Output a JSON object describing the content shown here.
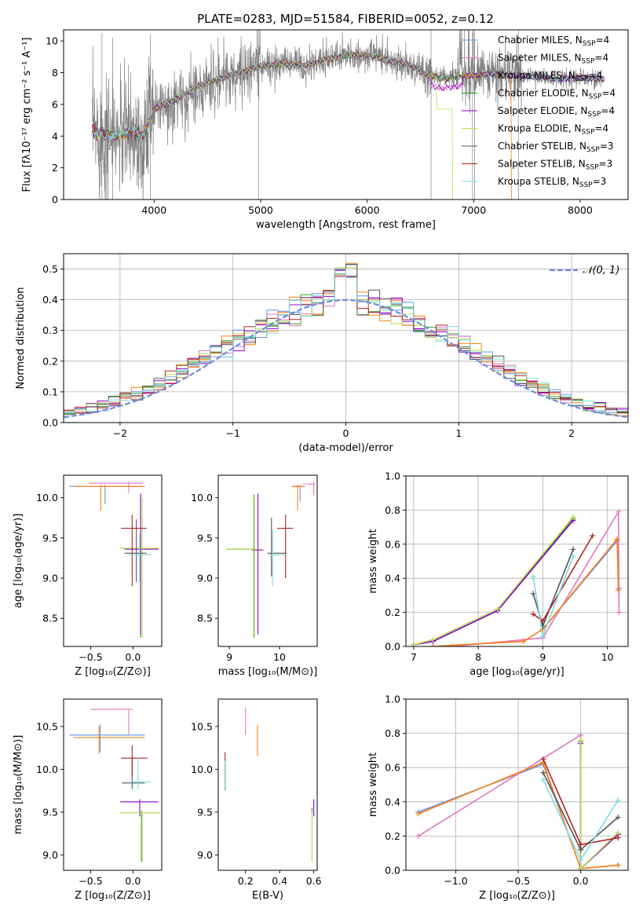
{
  "figure": {
    "title": "PLATE=0283, MJD=51584, FIBERID=0052, z=0.12"
  },
  "models": [
    {
      "name": "Chabrier MILES",
      "nssp": "4",
      "color": "#6495ed"
    },
    {
      "name": "Salpeter MILES",
      "nssp": "4",
      "color": "#e377c2"
    },
    {
      "name": "Kroupa MILES",
      "nssp": "4",
      "color": "#ff7f0e"
    },
    {
      "name": "Chabrier ELODIE",
      "nssp": "4",
      "color": "#2ca02c"
    },
    {
      "name": "Salpeter ELODIE",
      "nssp": "4",
      "color": "#9400d3"
    },
    {
      "name": "Kroupa ELODIE",
      "nssp": "4",
      "color": "#bcdd55"
    },
    {
      "name": "Chabrier STELIB",
      "nssp": "3",
      "color": "#555555"
    },
    {
      "name": "Salpeter STELIB",
      "nssp": "3",
      "color": "#b22222"
    },
    {
      "name": "Kroupa STELIB",
      "nssp": "3",
      "color": "#7fdbdf"
    }
  ],
  "legend_nssp_prefix": "N",
  "legend_nssp_sub": "SSP",
  "chart_data": [
    {
      "id": "spectrum",
      "type": "line",
      "xlabel": "wavelength [Angstrom, rest frame]",
      "ylabel": "Flux [fλ10⁻¹⁷ erg cm⁻² s⁻¹ A⁻¹]",
      "xlim": [
        3150,
        8450
      ],
      "ylim": [
        0,
        10.7
      ],
      "xticks": [
        4000,
        5000,
        6000,
        7000,
        8000
      ],
      "yticks": [
        0,
        2,
        4,
        6,
        8,
        10
      ],
      "observed_color": "#808080",
      "continuum": [
        [
          3420,
          4.3
        ],
        [
          3500,
          4.2
        ],
        [
          3600,
          4.0
        ],
        [
          3700,
          4.1
        ],
        [
          3800,
          4.3
        ],
        [
          3900,
          4.0
        ],
        [
          4000,
          5.7
        ],
        [
          4200,
          6.3
        ],
        [
          4400,
          7.1
        ],
        [
          4600,
          7.6
        ],
        [
          4800,
          8.0
        ],
        [
          5000,
          8.4
        ],
        [
          5200,
          8.6
        ],
        [
          5400,
          8.4
        ],
        [
          5600,
          8.8
        ],
        [
          5800,
          9.1
        ],
        [
          6000,
          9.1
        ],
        [
          6200,
          8.8
        ],
        [
          6400,
          8.5
        ],
        [
          6550,
          7.9
        ],
        [
          6700,
          7.6
        ],
        [
          6900,
          7.8
        ],
        [
          7200,
          7.9
        ],
        [
          7500,
          7.8
        ],
        [
          7800,
          7.6
        ],
        [
          8000,
          7.7
        ],
        [
          8200,
          7.6
        ]
      ],
      "legend_position": "upper right"
    },
    {
      "id": "residuals",
      "type": "histogram",
      "xlabel": "(data-model)/error",
      "ylabel": "Normed distribution",
      "xlim": [
        -2.5,
        2.5
      ],
      "ylim": [
        0,
        0.55
      ],
      "xticks": [
        -2,
        -1,
        0,
        1,
        2
      ],
      "yticks": [
        0,
        0.1,
        0.2,
        0.3,
        0.4,
        0.5
      ],
      "bin_width": 0.1,
      "grid": true,
      "reference": {
        "name": "𝒩(0, 1)",
        "mu": 0,
        "sigma": 1,
        "color": "#6a8fde"
      },
      "legend_position": "upper right"
    },
    {
      "id": "age-vs-Z",
      "type": "errorbar",
      "xlabel": "Z [log₁₀(Z/Z⊙)]",
      "ylabel": "age  [log₁₀(age/yr)]",
      "xlim": [
        -0.82,
        0.34
      ],
      "ylim": [
        8.15,
        10.28
      ],
      "xticks": [
        -0.5,
        0.0
      ],
      "yticks": [
        8.5,
        9.0,
        9.5,
        10.0
      ],
      "points": [
        {
          "m": 0,
          "x": -0.33,
          "xl": -0.75,
          "xh": 0.14,
          "y": 10.14,
          "yl": 9.92,
          "yh": 10.16
        },
        {
          "m": 1,
          "x": -0.05,
          "xl": -0.52,
          "xh": 0.12,
          "y": 10.18,
          "yl": 10.06,
          "yh": 10.2
        },
        {
          "m": 2,
          "x": -0.38,
          "xl": -0.7,
          "xh": 0.14,
          "y": 10.14,
          "yl": 9.84,
          "yh": 10.16
        },
        {
          "m": 3,
          "x": 0.09,
          "xl": -0.15,
          "xh": 0.29,
          "y": 9.37,
          "yl": 8.26,
          "yh": 10.02
        },
        {
          "m": 4,
          "x": 0.09,
          "xl": -0.1,
          "xh": 0.3,
          "y": 9.36,
          "yl": 8.3,
          "yh": 10.05
        },
        {
          "m": 5,
          "x": 0.11,
          "xl": -0.16,
          "xh": 0.32,
          "y": 9.37,
          "yl": 8.26,
          "yh": 10.0
        },
        {
          "m": 6,
          "x": 0.04,
          "xl": -0.1,
          "xh": 0.16,
          "y": 9.31,
          "yl": 8.95,
          "yh": 9.73
        },
        {
          "m": 7,
          "x": -0.01,
          "xl": -0.14,
          "xh": 0.16,
          "y": 9.62,
          "yl": 8.9,
          "yh": 9.79
        },
        {
          "m": 8,
          "x": 0.08,
          "xl": -0.05,
          "xh": 0.21,
          "y": 9.29,
          "yl": 8.95,
          "yh": 9.55
        }
      ]
    },
    {
      "id": "age-vs-mass",
      "type": "errorbar",
      "xlabel": "mass [log₁₀(M/M⊙)]",
      "ylabel": "",
      "xlim": [
        8.78,
        10.75
      ],
      "ylim": [
        8.15,
        10.28
      ],
      "xticks": [
        9,
        10
      ],
      "yticks": [
        8.5,
        9.0,
        9.5,
        10.0
      ],
      "points": [
        {
          "m": 0,
          "x": 10.41,
          "xl": 10.26,
          "xh": 10.51,
          "y": 10.14,
          "yl": 9.95,
          "yh": 10.16
        },
        {
          "m": 1,
          "x": 10.68,
          "xl": 10.46,
          "xh": 10.72,
          "y": 10.17,
          "yl": 10.03,
          "yh": 10.19
        },
        {
          "m": 2,
          "x": 10.36,
          "xl": 10.24,
          "xh": 10.5,
          "y": 10.14,
          "yl": 9.84,
          "yh": 10.16
        },
        {
          "m": 3,
          "x": 9.49,
          "xl": 8.94,
          "xh": 9.6,
          "y": 9.36,
          "yl": 8.26,
          "yh": 10.04
        },
        {
          "m": 4,
          "x": 9.57,
          "xl": 9.45,
          "xh": 9.68,
          "y": 9.35,
          "yl": 8.3,
          "yh": 10.05
        },
        {
          "m": 5,
          "x": 9.5,
          "xl": 8.94,
          "xh": 9.58,
          "y": 9.36,
          "yl": 8.26,
          "yh": 10.01
        },
        {
          "m": 6,
          "x": 9.84,
          "xl": 9.76,
          "xh": 10.14,
          "y": 9.31,
          "yl": 9.02,
          "yh": 9.75
        },
        {
          "m": 7,
          "x": 10.12,
          "xl": 9.95,
          "xh": 10.27,
          "y": 9.62,
          "yl": 9.0,
          "yh": 9.79
        },
        {
          "m": 8,
          "x": 9.86,
          "xl": 9.78,
          "xh": 10.13,
          "y": 9.29,
          "yl": 8.9,
          "yh": 9.6
        }
      ]
    },
    {
      "id": "massweight-vs-age",
      "type": "line",
      "xlabel": "age  [log₁₀(age/yr)]",
      "ylabel": "mass weight",
      "xlim": [
        6.88,
        10.32
      ],
      "ylim": [
        0,
        1
      ],
      "xticks": [
        7,
        8,
        9,
        10
      ],
      "yticks": [
        0,
        0.2,
        0.4,
        0.6,
        0.8,
        1.0
      ],
      "grid": true,
      "series": [
        {
          "m": 0,
          "x": [
            7.3,
            8.7,
            9.0,
            10.15,
            10.18
          ],
          "y": [
            0.0,
            0.03,
            0.1,
            0.62,
            0.34
          ]
        },
        {
          "m": 1,
          "x": [
            7.6,
            9.0,
            10.17,
            10.18
          ],
          "y": [
            0.0,
            0.05,
            0.79,
            0.2
          ]
        },
        {
          "m": 2,
          "x": [
            7.3,
            8.7,
            9.0,
            10.15,
            10.17
          ],
          "y": [
            0.0,
            0.03,
            0.1,
            0.63,
            0.33
          ]
        },
        {
          "m": 3,
          "x": [
            7.0,
            7.3,
            8.3,
            9.47
          ],
          "y": [
            0.01,
            0.03,
            0.21,
            0.75
          ]
        },
        {
          "m": 4,
          "x": [
            7.0,
            7.3,
            8.3,
            9.47
          ],
          "y": [
            0.01,
            0.03,
            0.21,
            0.74
          ]
        },
        {
          "m": 5,
          "x": [
            7.0,
            7.3,
            8.3,
            9.47
          ],
          "y": [
            0.01,
            0.04,
            0.22,
            0.76
          ]
        },
        {
          "m": 6,
          "x": [
            8.85,
            9.0,
            9.47
          ],
          "y": [
            0.31,
            0.12,
            0.57
          ]
        },
        {
          "m": 7,
          "x": [
            8.85,
            9.0,
            9.77
          ],
          "y": [
            0.19,
            0.15,
            0.65
          ]
        },
        {
          "m": 8,
          "x": [
            8.85,
            9.0,
            9.47
          ],
          "y": [
            0.41,
            0.06,
            0.53
          ]
        }
      ]
    },
    {
      "id": "mass-vs-Z",
      "type": "errorbar",
      "xlabel": "Z [log₁₀(Z/Z⊙)]",
      "ylabel": "mass [log₁₀(M/M⊙)]",
      "xlim": [
        -0.82,
        0.34
      ],
      "ylim": [
        8.82,
        10.82
      ],
      "xticks": [
        -0.5,
        0.0
      ],
      "yticks": [
        9.0,
        9.5,
        10.0,
        10.5
      ],
      "points": [
        {
          "m": 0,
          "x": -0.39,
          "xl": -0.75,
          "xh": 0.14,
          "y": 10.4,
          "yl": 10.2,
          "yh": 10.53
        },
        {
          "m": 1,
          "x": -0.05,
          "xl": -0.5,
          "xh": 0.0,
          "y": 10.7,
          "yl": 10.4,
          "yh": 10.7
        },
        {
          "m": 2,
          "x": -0.4,
          "xl": -0.7,
          "xh": 0.14,
          "y": 10.37,
          "yl": 10.18,
          "yh": 10.5
        },
        {
          "m": 3,
          "x": 0.1,
          "xl": -0.15,
          "xh": 0.29,
          "y": 9.49,
          "yl": 8.92,
          "yh": 9.52
        },
        {
          "m": 4,
          "x": 0.08,
          "xl": -0.15,
          "xh": 0.3,
          "y": 9.62,
          "yl": 9.45,
          "yh": 9.65
        },
        {
          "m": 5,
          "x": 0.11,
          "xl": -0.16,
          "xh": 0.32,
          "y": 9.49,
          "yl": 8.92,
          "yh": 9.5
        },
        {
          "m": 6,
          "x": -0.01,
          "xl": -0.13,
          "xh": 0.14,
          "y": 9.84,
          "yl": 9.77,
          "yh": 10.14
        },
        {
          "m": 7,
          "x": -0.01,
          "xl": -0.14,
          "xh": 0.17,
          "y": 10.13,
          "yl": 9.93,
          "yh": 10.28
        },
        {
          "m": 8,
          "x": 0.06,
          "xl": -0.03,
          "xh": 0.21,
          "y": 9.85,
          "yl": 9.76,
          "yh": 10.14
        }
      ]
    },
    {
      "id": "mass-vs-ebv",
      "type": "errorbar",
      "xlabel": "E(B-V)",
      "ylabel": "",
      "xlim": [
        0.04,
        0.62
      ],
      "ylim": [
        8.82,
        10.82
      ],
      "xticks": [
        0.2,
        0.4,
        0.6
      ],
      "yticks": [
        9.0,
        9.5,
        10.0,
        10.5
      ],
      "points": [
        {
          "m": 0,
          "x": 0.08,
          "xl": 0.08,
          "xh": 0.08,
          "y": 10.0,
          "yl": 9.79,
          "yh": 10.12
        },
        {
          "m": 1,
          "x": 0.2,
          "xl": 0.2,
          "xh": 0.2,
          "y": 10.55,
          "yl": 10.4,
          "yh": 10.72
        },
        {
          "m": 2,
          "x": 0.27,
          "xl": 0.27,
          "xh": 0.27,
          "y": 10.35,
          "yl": 10.16,
          "yh": 10.52
        },
        {
          "m": 3,
          "x": 0.59,
          "xl": 0.59,
          "xh": 0.59,
          "y": 9.3,
          "yl": 8.93,
          "yh": 9.55
        },
        {
          "m": 4,
          "x": 0.6,
          "xl": 0.6,
          "xh": 0.6,
          "y": 9.58,
          "yl": 9.45,
          "yh": 9.65
        },
        {
          "m": 5,
          "x": 0.59,
          "xl": 0.59,
          "xh": 0.59,
          "y": 9.25,
          "yl": 8.92,
          "yh": 9.5
        },
        {
          "m": 6,
          "x": 0.08,
          "xl": 0.08,
          "xh": 0.08,
          "y": 9.9,
          "yl": 9.76,
          "yh": 10.05
        },
        {
          "m": 7,
          "x": 0.08,
          "xl": 0.08,
          "xh": 0.08,
          "y": 10.05,
          "yl": 9.85,
          "yh": 10.2
        },
        {
          "m": 8,
          "x": 0.08,
          "xl": 0.08,
          "xh": 0.08,
          "y": 9.95,
          "yl": 9.78,
          "yh": 10.1
        }
      ]
    },
    {
      "id": "massweight-vs-Z",
      "type": "line",
      "xlabel": "Z [log₁₀(Z/Z⊙)]",
      "ylabel": "mass weight",
      "xlim": [
        -1.4,
        0.38
      ],
      "ylim": [
        0,
        1
      ],
      "xticks": [
        -1.0,
        -0.5,
        0.0
      ],
      "yticks": [
        0,
        0.2,
        0.4,
        0.6,
        0.8,
        1.0
      ],
      "grid": true,
      "series": [
        {
          "m": 0,
          "x": [
            -1.3,
            -0.3,
            0.0,
            0.3
          ],
          "y": [
            0.34,
            0.62,
            0.01,
            0.03
          ]
        },
        {
          "m": 1,
          "x": [
            -1.3,
            0.0,
            0.0
          ],
          "y": [
            0.2,
            0.79,
            0.01
          ]
        },
        {
          "m": 2,
          "x": [
            -1.3,
            -0.3,
            0.0,
            0.3
          ],
          "y": [
            0.33,
            0.63,
            0.01,
            0.03
          ]
        },
        {
          "m": 3,
          "x": [
            0.0,
            0.0,
            0.3
          ],
          "y": [
            0.75,
            0.01,
            0.21
          ]
        },
        {
          "m": 4,
          "x": [
            0.0,
            0.0,
            0.3
          ],
          "y": [
            0.74,
            0.01,
            0.21
          ]
        },
        {
          "m": 5,
          "x": [
            0.0,
            0.0,
            0.3
          ],
          "y": [
            0.76,
            0.01,
            0.22
          ]
        },
        {
          "m": 6,
          "x": [
            -0.3,
            0.0,
            0.3
          ],
          "y": [
            0.57,
            0.12,
            0.31
          ]
        },
        {
          "m": 7,
          "x": [
            -0.3,
            0.0,
            0.3
          ],
          "y": [
            0.65,
            0.15,
            0.19
          ]
        },
        {
          "m": 8,
          "x": [
            -0.3,
            0.0,
            0.3
          ],
          "y": [
            0.53,
            0.06,
            0.41
          ]
        }
      ]
    }
  ]
}
